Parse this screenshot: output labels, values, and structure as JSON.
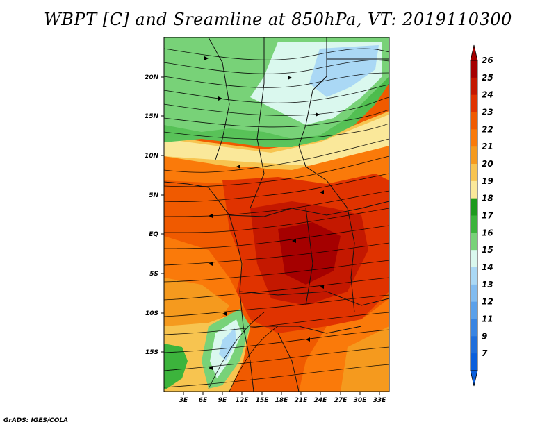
{
  "title": "WBPT [C] and Sreamline at 850hPa, VT: 2019110300",
  "footer": "GrADS: IGES/COLA",
  "map": {
    "lat_labels": [
      "20N",
      "15N",
      "10N",
      "5N",
      "EQ",
      "5S",
      "10S",
      "15S"
    ],
    "lon_labels": [
      "3E",
      "6E",
      "9E",
      "12E",
      "15E",
      "18E",
      "21E",
      "24E",
      "27E",
      "30E",
      "33E"
    ]
  },
  "colorbar": {
    "labels": [
      "26",
      "25",
      "24",
      "23",
      "22",
      "21",
      "20",
      "19",
      "18",
      "17",
      "16",
      "15",
      "14",
      "13",
      "12",
      "11",
      "9",
      "7"
    ],
    "colors": [
      "#a50000",
      "#c41800",
      "#e03300",
      "#f05a00",
      "#fa7a0a",
      "#f59a1e",
      "#f7c450",
      "#fae89a",
      "#1e9a1e",
      "#3cb43c",
      "#78d278",
      "#daf8ee",
      "#aad8f5",
      "#82bcf0",
      "#5aa0ea",
      "#3884e2",
      "#1f6edb",
      "#0a5fdc"
    ]
  }
}
